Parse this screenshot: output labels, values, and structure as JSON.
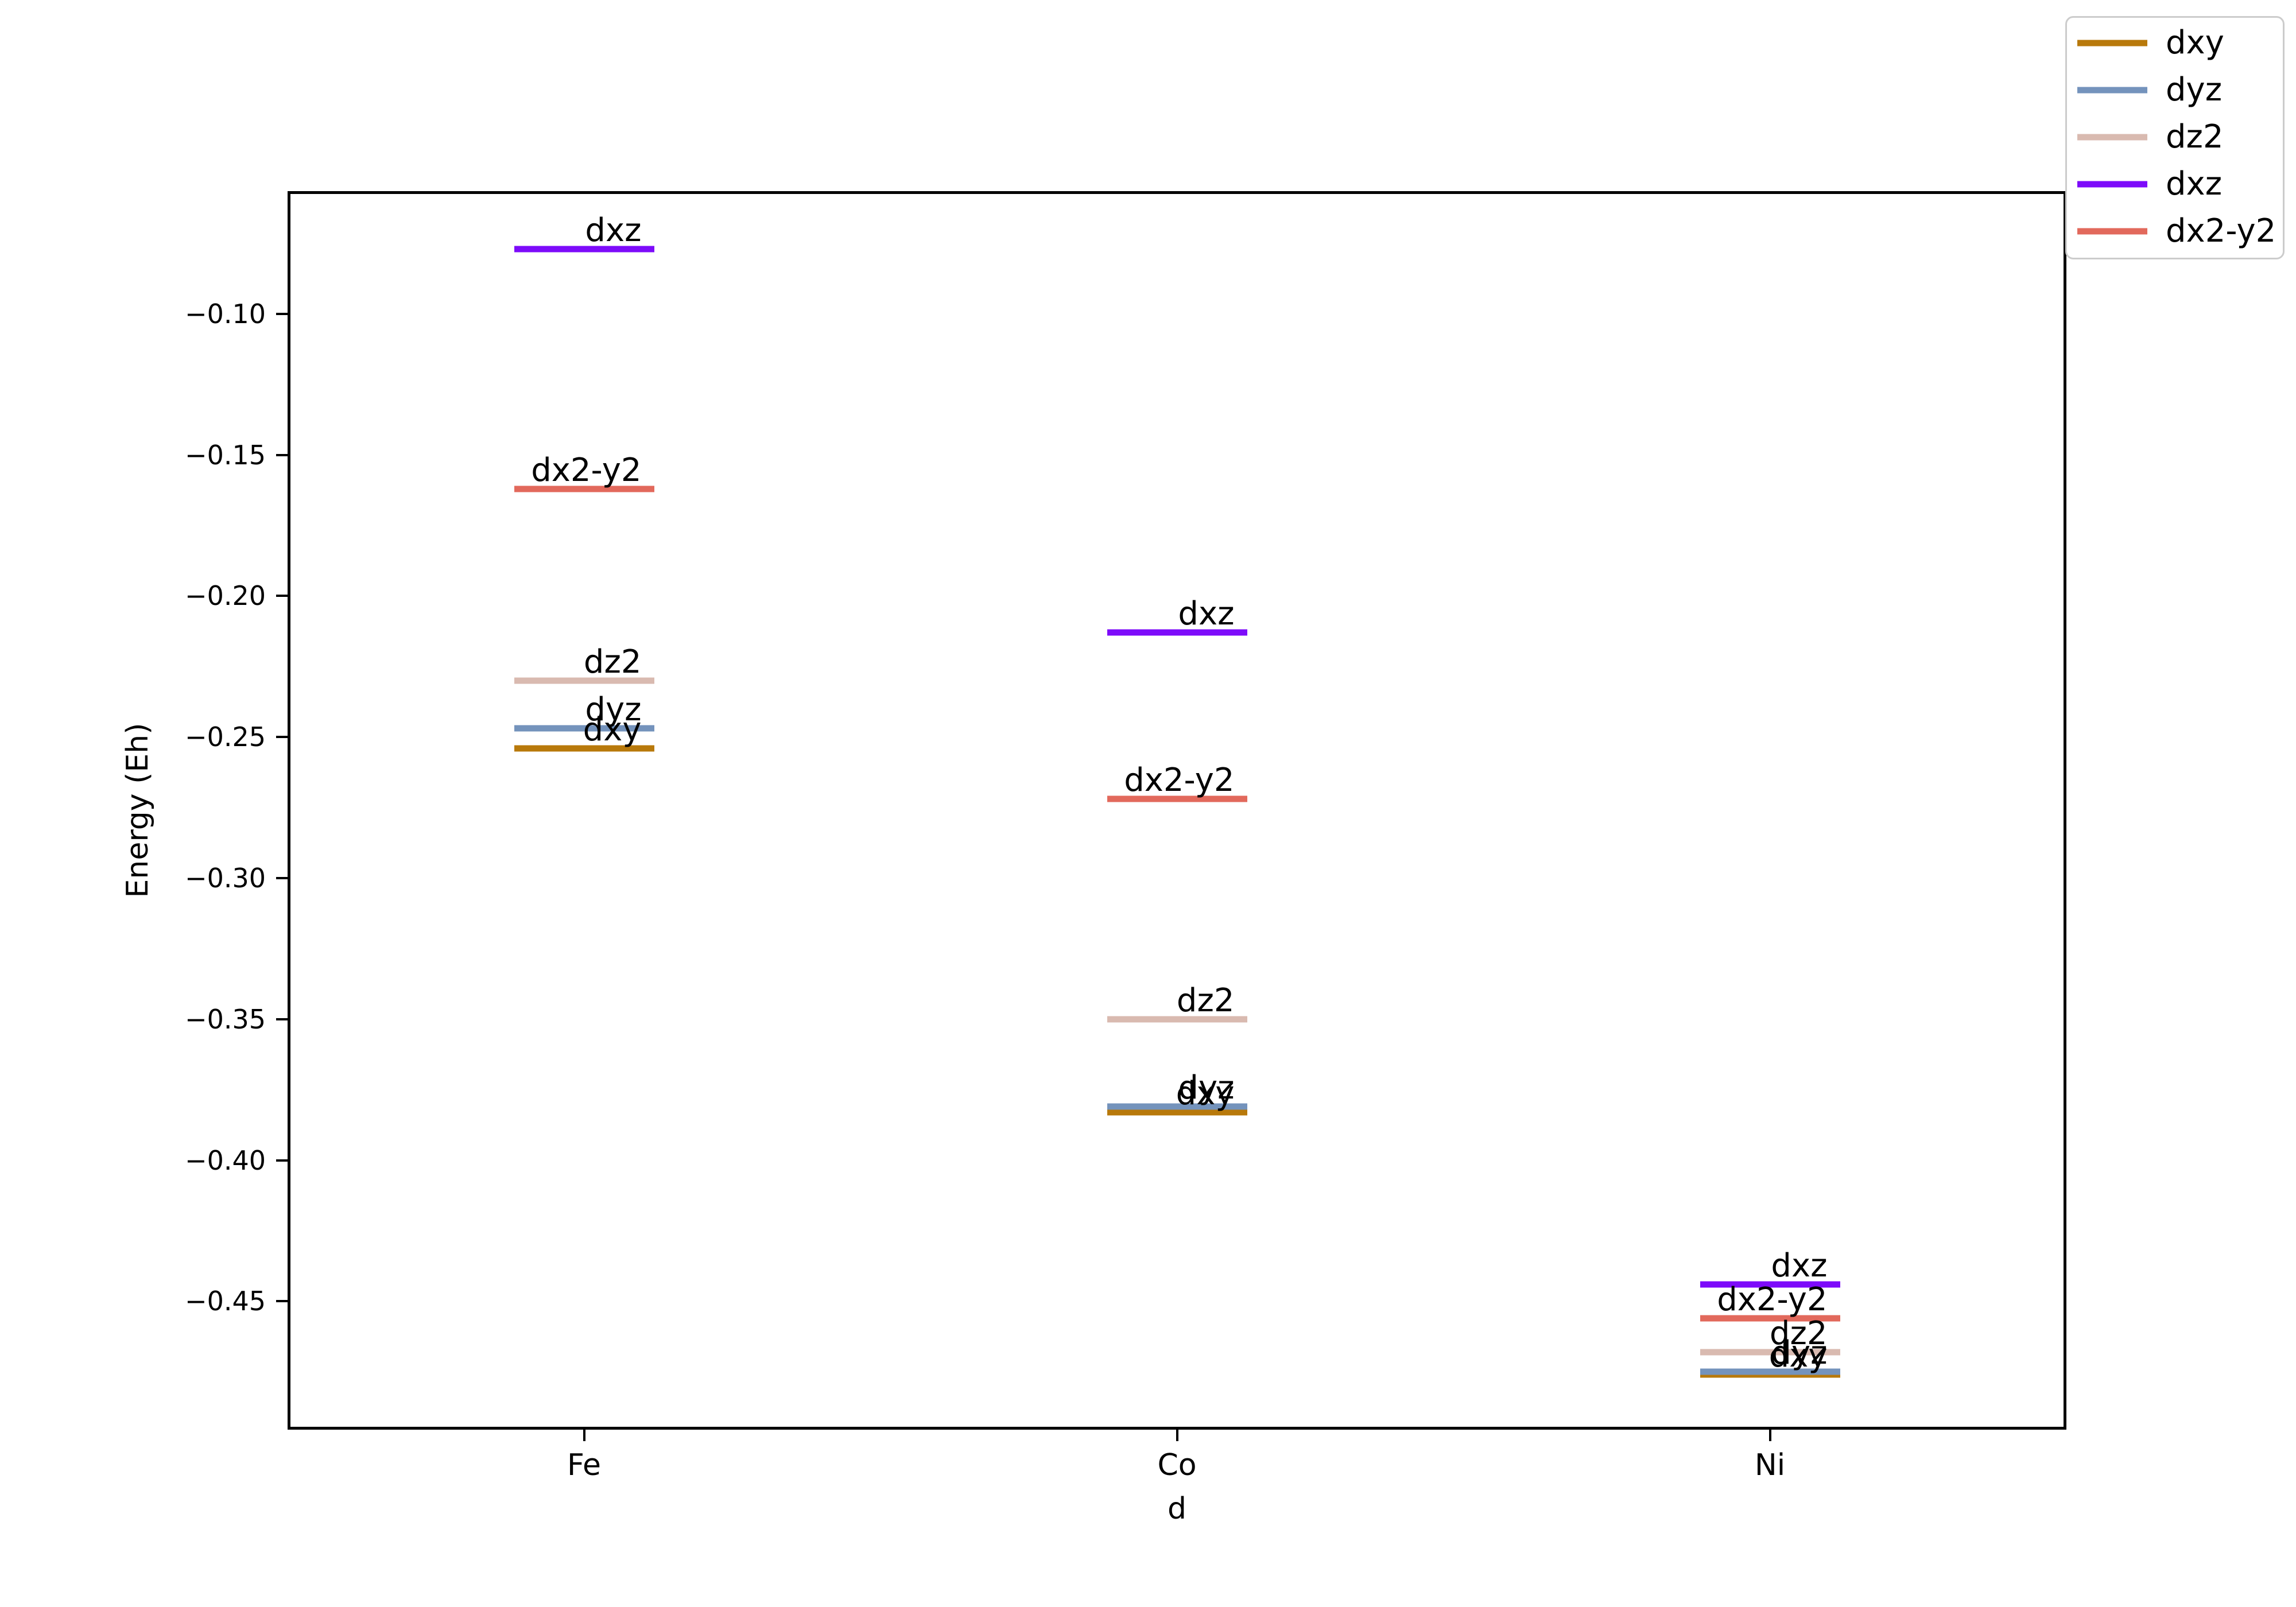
{
  "chart_data": {
    "type": "line",
    "subtype": "energy-level-diagram",
    "title": "",
    "xlabel": "d",
    "ylabel": "Energy (Eh)",
    "categories": [
      "Fe",
      "Co",
      "Ni"
    ],
    "xlim": [
      -0.5,
      2.5
    ],
    "ylim": [
      -0.4955,
      -0.0565
    ],
    "yticks": [
      -0.1,
      -0.15,
      -0.2,
      -0.25,
      -0.3,
      -0.35,
      -0.4,
      -0.45
    ],
    "ytick_labels": [
      "−0.10",
      "−0.15",
      "−0.20",
      "−0.25",
      "−0.30",
      "−0.35",
      "−0.40",
      "−0.45"
    ],
    "grid": false,
    "legend_position": "upper right",
    "series": [
      {
        "name": "dxy",
        "color": "#b8790b",
        "values": [
          -0.254,
          -0.383,
          -0.476
        ]
      },
      {
        "name": "dyz",
        "color": "#7493bc",
        "values": [
          -0.247,
          -0.381,
          -0.475
        ]
      },
      {
        "name": "dz2",
        "color": "#d9bab0",
        "values": [
          -0.23,
          -0.35,
          -0.468
        ]
      },
      {
        "name": "dxz",
        "color": "#7d0bfa",
        "values": [
          -0.077,
          -0.213,
          -0.444
        ]
      },
      {
        "name": "dx2-y2",
        "color": "#e2695c",
        "values": [
          -0.162,
          -0.272,
          -0.456
        ]
      }
    ],
    "legend_entries": [
      "dxy",
      "dyz",
      "dz2",
      "dxz",
      "dx2-y2"
    ]
  },
  "axes": {
    "xlabel": "d",
    "ylabel": "Energy (Eh)"
  }
}
